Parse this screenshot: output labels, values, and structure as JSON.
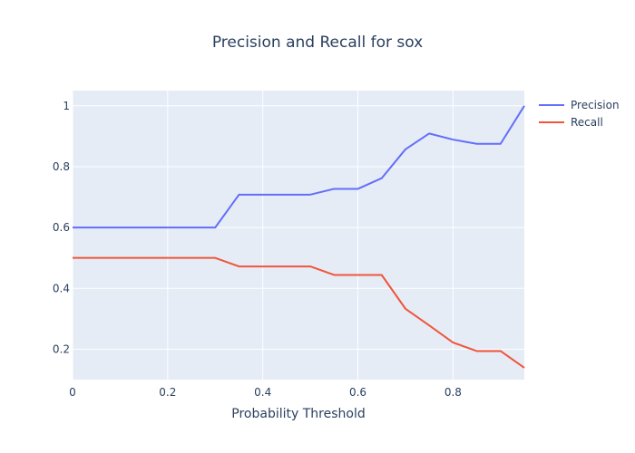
{
  "chart_data": {
    "type": "line",
    "title": "Precision and Recall for sox",
    "xlabel": "Probability Threshold",
    "ylabel": "",
    "xlim": [
      0,
      0.95
    ],
    "ylim": [
      0.1,
      1.05
    ],
    "x_ticks": [
      0,
      0.2,
      0.4,
      0.6,
      0.8
    ],
    "x_tick_labels": [
      "0",
      "0.2",
      "0.4",
      "0.6",
      "0.8"
    ],
    "y_ticks": [
      0.2,
      0.4,
      0.6,
      0.8,
      1
    ],
    "y_tick_labels": [
      "0.2",
      "0.4",
      "0.6",
      "0.8",
      "1"
    ],
    "grid": true,
    "legend_position": "top-right",
    "plot_background": "#e5ecf6",
    "x": [
      0,
      0.05,
      0.1,
      0.15,
      0.2,
      0.25,
      0.3,
      0.35,
      0.4,
      0.45,
      0.5,
      0.55,
      0.6,
      0.65,
      0.7,
      0.75,
      0.8,
      0.85,
      0.9,
      0.95
    ],
    "series": [
      {
        "name": "Precision",
        "color": "#636efa",
        "values": [
          0.6,
          0.6,
          0.6,
          0.6,
          0.6,
          0.6,
          0.6,
          0.708,
          0.708,
          0.708,
          0.708,
          0.727,
          0.727,
          0.762,
          0.857,
          0.909,
          0.889,
          0.875,
          0.875,
          1.0
        ]
      },
      {
        "name": "Recall",
        "color": "#ef553b",
        "values": [
          0.5,
          0.5,
          0.5,
          0.5,
          0.5,
          0.5,
          0.5,
          0.472,
          0.472,
          0.472,
          0.472,
          0.444,
          0.444,
          0.444,
          0.333,
          0.278,
          0.222,
          0.194,
          0.194,
          0.139
        ]
      }
    ]
  }
}
